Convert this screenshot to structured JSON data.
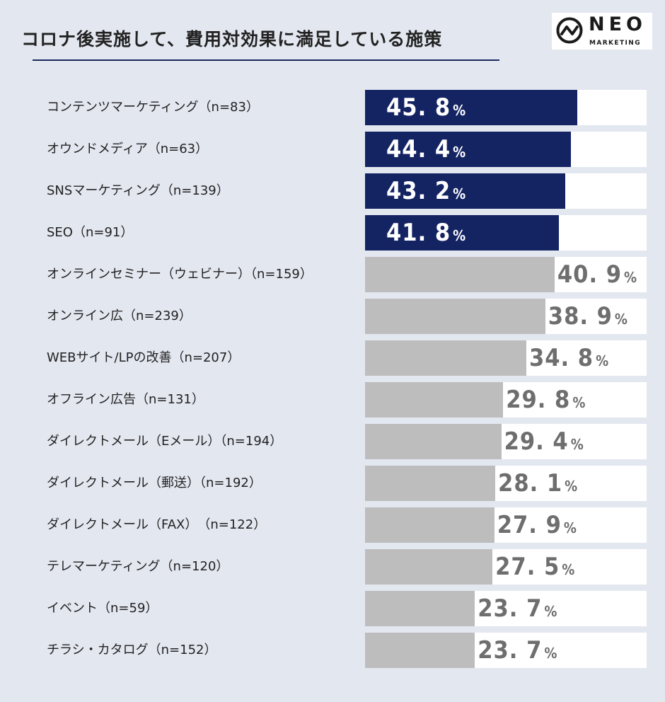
{
  "title": "コロナ後実施して、費用対効果に満足している施策",
  "logo": {
    "name": "NEO",
    "sub": "MARKETING"
  },
  "colors": {
    "highlight": "#142463",
    "muted": "#bdbdbd",
    "track": "#ffffff",
    "highlight_text": "#ffffff",
    "muted_text": "#6e6e6e"
  },
  "chart_data": {
    "type": "bar",
    "orientation": "horizontal",
    "title": "コロナ後実施して、費用対効果に満足している施策",
    "unit": "%",
    "xlim": [
      0,
      100
    ],
    "categories": [
      "コンテンツマーケティング（n=83）",
      "オウンドメディア（n=63）",
      "SNSマーケティング（n=139）",
      "SEO（n=91）",
      "オンラインセミナー（ウェビナー）（n=159）",
      "オンライン広（n=239）",
      "WEBサイト/LPの改善（n=207）",
      "オフライン広告（n=131）",
      "ダイレクトメール（Eメール）（n=194）",
      "ダイレクトメール（郵送）（n=192）",
      "ダイレクトメール（FAX）　（n=122）",
      "テレマーケティング（n=120）",
      "イベント（n=59）",
      "チラシ・カタログ（n=152）"
    ],
    "values": [
      45.8,
      44.4,
      43.2,
      41.8,
      40.9,
      38.9,
      34.8,
      29.8,
      29.4,
      28.1,
      27.9,
      27.5,
      23.7,
      23.7
    ],
    "labels": [
      "45. 8",
      "44. 4",
      "43. 2",
      "41. 8",
      "40. 9",
      "38. 9",
      "34. 8",
      "29. 8",
      "29. 4",
      "28. 1",
      "27. 9",
      "27. 5",
      "23. 7",
      "23. 7"
    ],
    "highlighted": [
      true,
      true,
      true,
      true,
      false,
      false,
      false,
      false,
      false,
      false,
      false,
      false,
      false,
      false
    ]
  }
}
